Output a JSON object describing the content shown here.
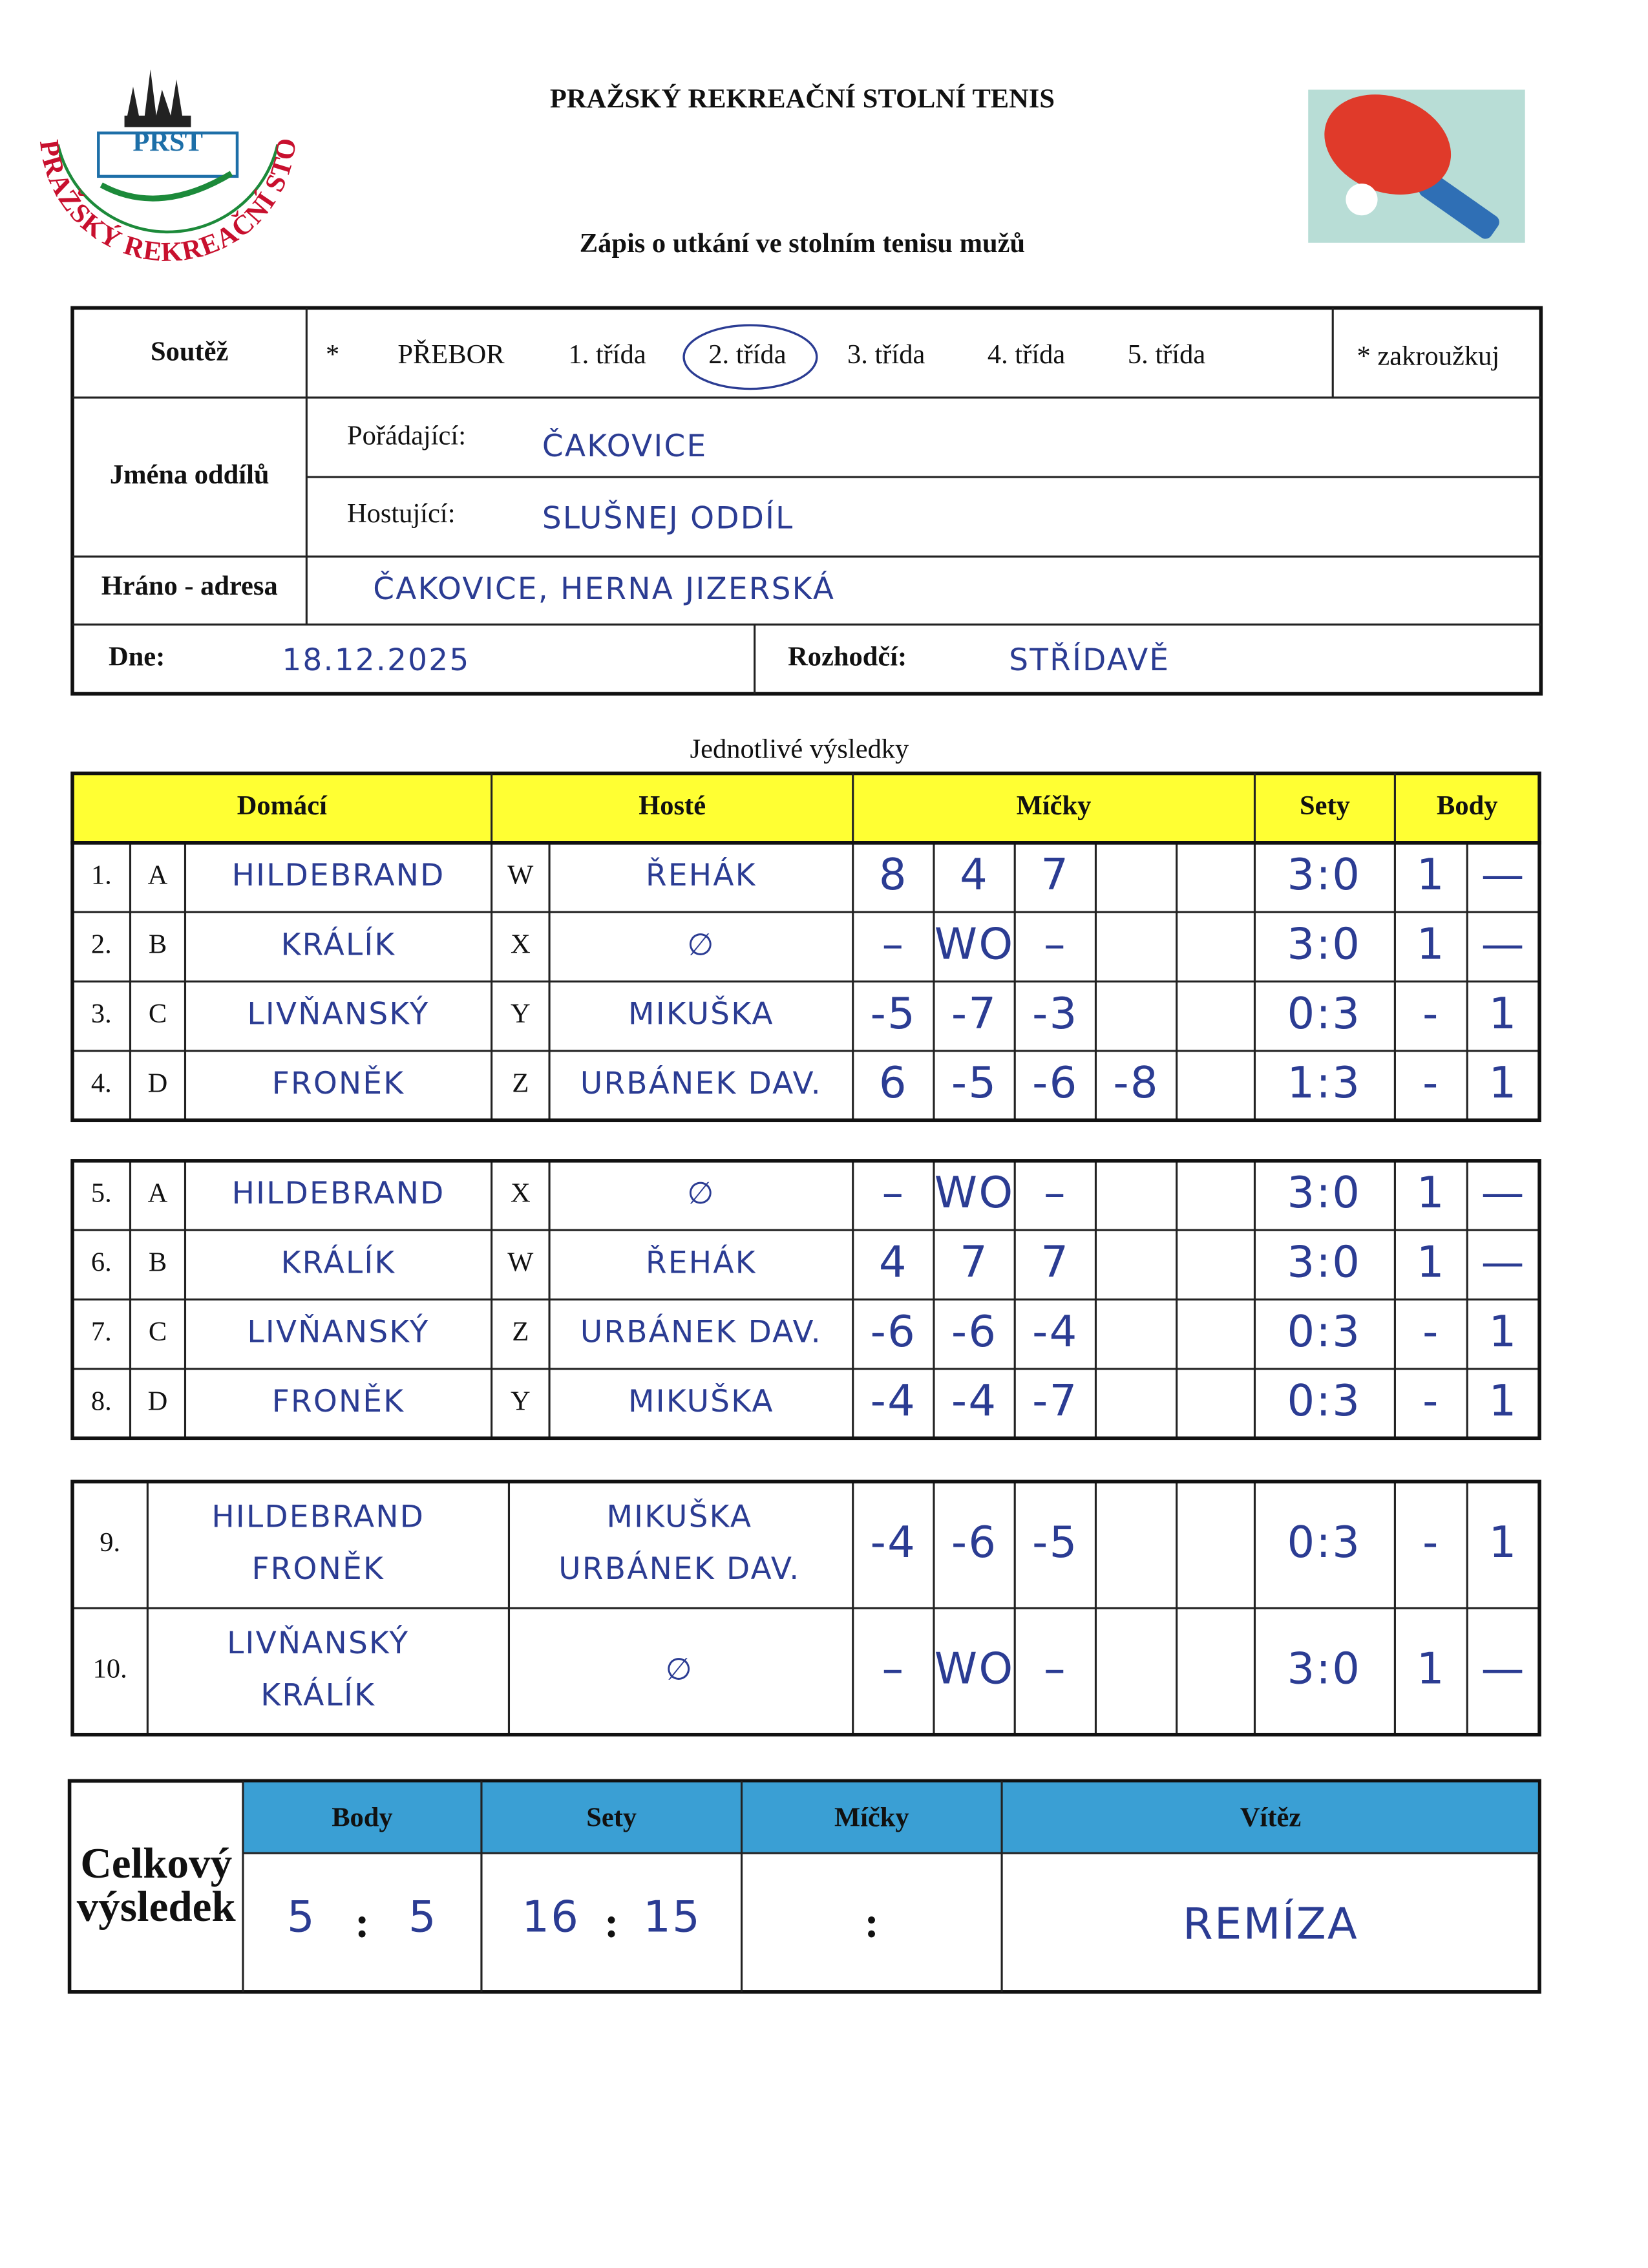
{
  "header": {
    "title": "PRAŽSKÝ REKREAČNÍ STOLNÍ TENIS",
    "subtitle": "Zápis o utkání ve stolním tenisu mužů"
  },
  "logo": {
    "badge": "PRST",
    "ring": "PRAŽSKÝ REKREAČNÍ STOLNÍ TENIS"
  },
  "info": {
    "competition": {
      "label": "Soutěž",
      "marker": "*",
      "options": [
        "PŘEBOR",
        "1. třída",
        "2. třída",
        "3. třída",
        "4. třída",
        "5. třída"
      ],
      "selected_index": 2,
      "note": "* zakroužkuj"
    },
    "clubs": {
      "label": "Jména oddílů",
      "home_label": "Pořádající:",
      "home": "ČAKOVICE",
      "away_label": "Hostující:",
      "away": "SLUŠNEJ ODDÍL"
    },
    "venue": {
      "label": "Hráno - adresa",
      "value": "ČAKOVICE, HERNA JIZERSKÁ"
    },
    "date": {
      "label": "Dne:",
      "value": "18.12.2025"
    },
    "referee": {
      "label": "Rozhodčí:",
      "value": "STŘÍDAVĚ"
    }
  },
  "results": {
    "title": "Jednotlivé výsledky",
    "columns": [
      "Domácí",
      "Hosté",
      "Míčky",
      "Sety",
      "Body"
    ],
    "rows": [
      {
        "no": "1.",
        "home_code": "A",
        "home": "HILDEBRAND",
        "away_code": "W",
        "away": "ŘEHÁK",
        "balls": [
          8,
          4,
          7
        ],
        "sets": "3:0",
        "points": [
          "1",
          "—"
        ]
      },
      {
        "no": "2.",
        "home_code": "B",
        "home": "KRÁLÍK",
        "away_code": "X",
        "away": "∅",
        "balls": [
          "–",
          "WO",
          "–"
        ],
        "sets": "3:0",
        "points": [
          "1",
          "—"
        ]
      },
      {
        "no": "3.",
        "home_code": "C",
        "home": "LIVŇANSKÝ",
        "away_code": "Y",
        "away": "MIKUŠKA",
        "balls": [
          -5,
          -7,
          -3
        ],
        "sets": "0:3",
        "points": [
          "-",
          "1"
        ]
      },
      {
        "no": "4.",
        "home_code": "D",
        "home": "FRONĚK",
        "away_code": "Z",
        "away": "URBÁNEK DAV.",
        "balls": [
          6,
          -5,
          -6,
          -8
        ],
        "sets": "1:3",
        "points": [
          "-",
          "1"
        ]
      },
      {
        "no": "5.",
        "home_code": "A",
        "home": "HILDEBRAND",
        "away_code": "X",
        "away": "∅",
        "balls": [
          "–",
          "WO",
          "–"
        ],
        "sets": "3:0",
        "points": [
          "1",
          "—"
        ]
      },
      {
        "no": "6.",
        "home_code": "B",
        "home": "KRÁLÍK",
        "away_code": "W",
        "away": "ŘEHÁK",
        "balls": [
          4,
          7,
          7
        ],
        "sets": "3:0",
        "points": [
          "1",
          "—"
        ]
      },
      {
        "no": "7.",
        "home_code": "C",
        "home": "LIVŇANSKÝ",
        "away_code": "Z",
        "away": "URBÁNEK DAV.",
        "balls": [
          -6,
          -6,
          -4
        ],
        "sets": "0:3",
        "points": [
          "-",
          "1"
        ]
      },
      {
        "no": "8.",
        "home_code": "D",
        "home": "FRONĚK",
        "away_code": "Y",
        "away": "MIKUŠKA",
        "balls": [
          -4,
          -4,
          -7
        ],
        "sets": "0:3",
        "points": [
          "-",
          "1"
        ]
      },
      {
        "no": "9.",
        "home": [
          "HILDEBRAND",
          "FRONĚK"
        ],
        "away": [
          "MIKUŠKA",
          "URBÁNEK DAV."
        ],
        "balls": [
          -4,
          -6,
          -5
        ],
        "sets": "0:3",
        "points": [
          "-",
          "1"
        ]
      },
      {
        "no": "10.",
        "home": [
          "LIVŇANSKÝ",
          "KRÁLÍK"
        ],
        "away": [
          "∅"
        ],
        "balls": [
          "–",
          "WO",
          "–"
        ],
        "sets": "3:0",
        "points": [
          "1",
          "—"
        ]
      }
    ]
  },
  "summary": {
    "label": [
      "Celkový",
      "výsledek"
    ],
    "columns": [
      "Body",
      "Sety",
      "Míčky",
      "Vítěz"
    ],
    "separator": ":",
    "points": [
      5,
      5
    ],
    "sets": [
      16,
      15
    ],
    "winner": "REMÍZA"
  }
}
